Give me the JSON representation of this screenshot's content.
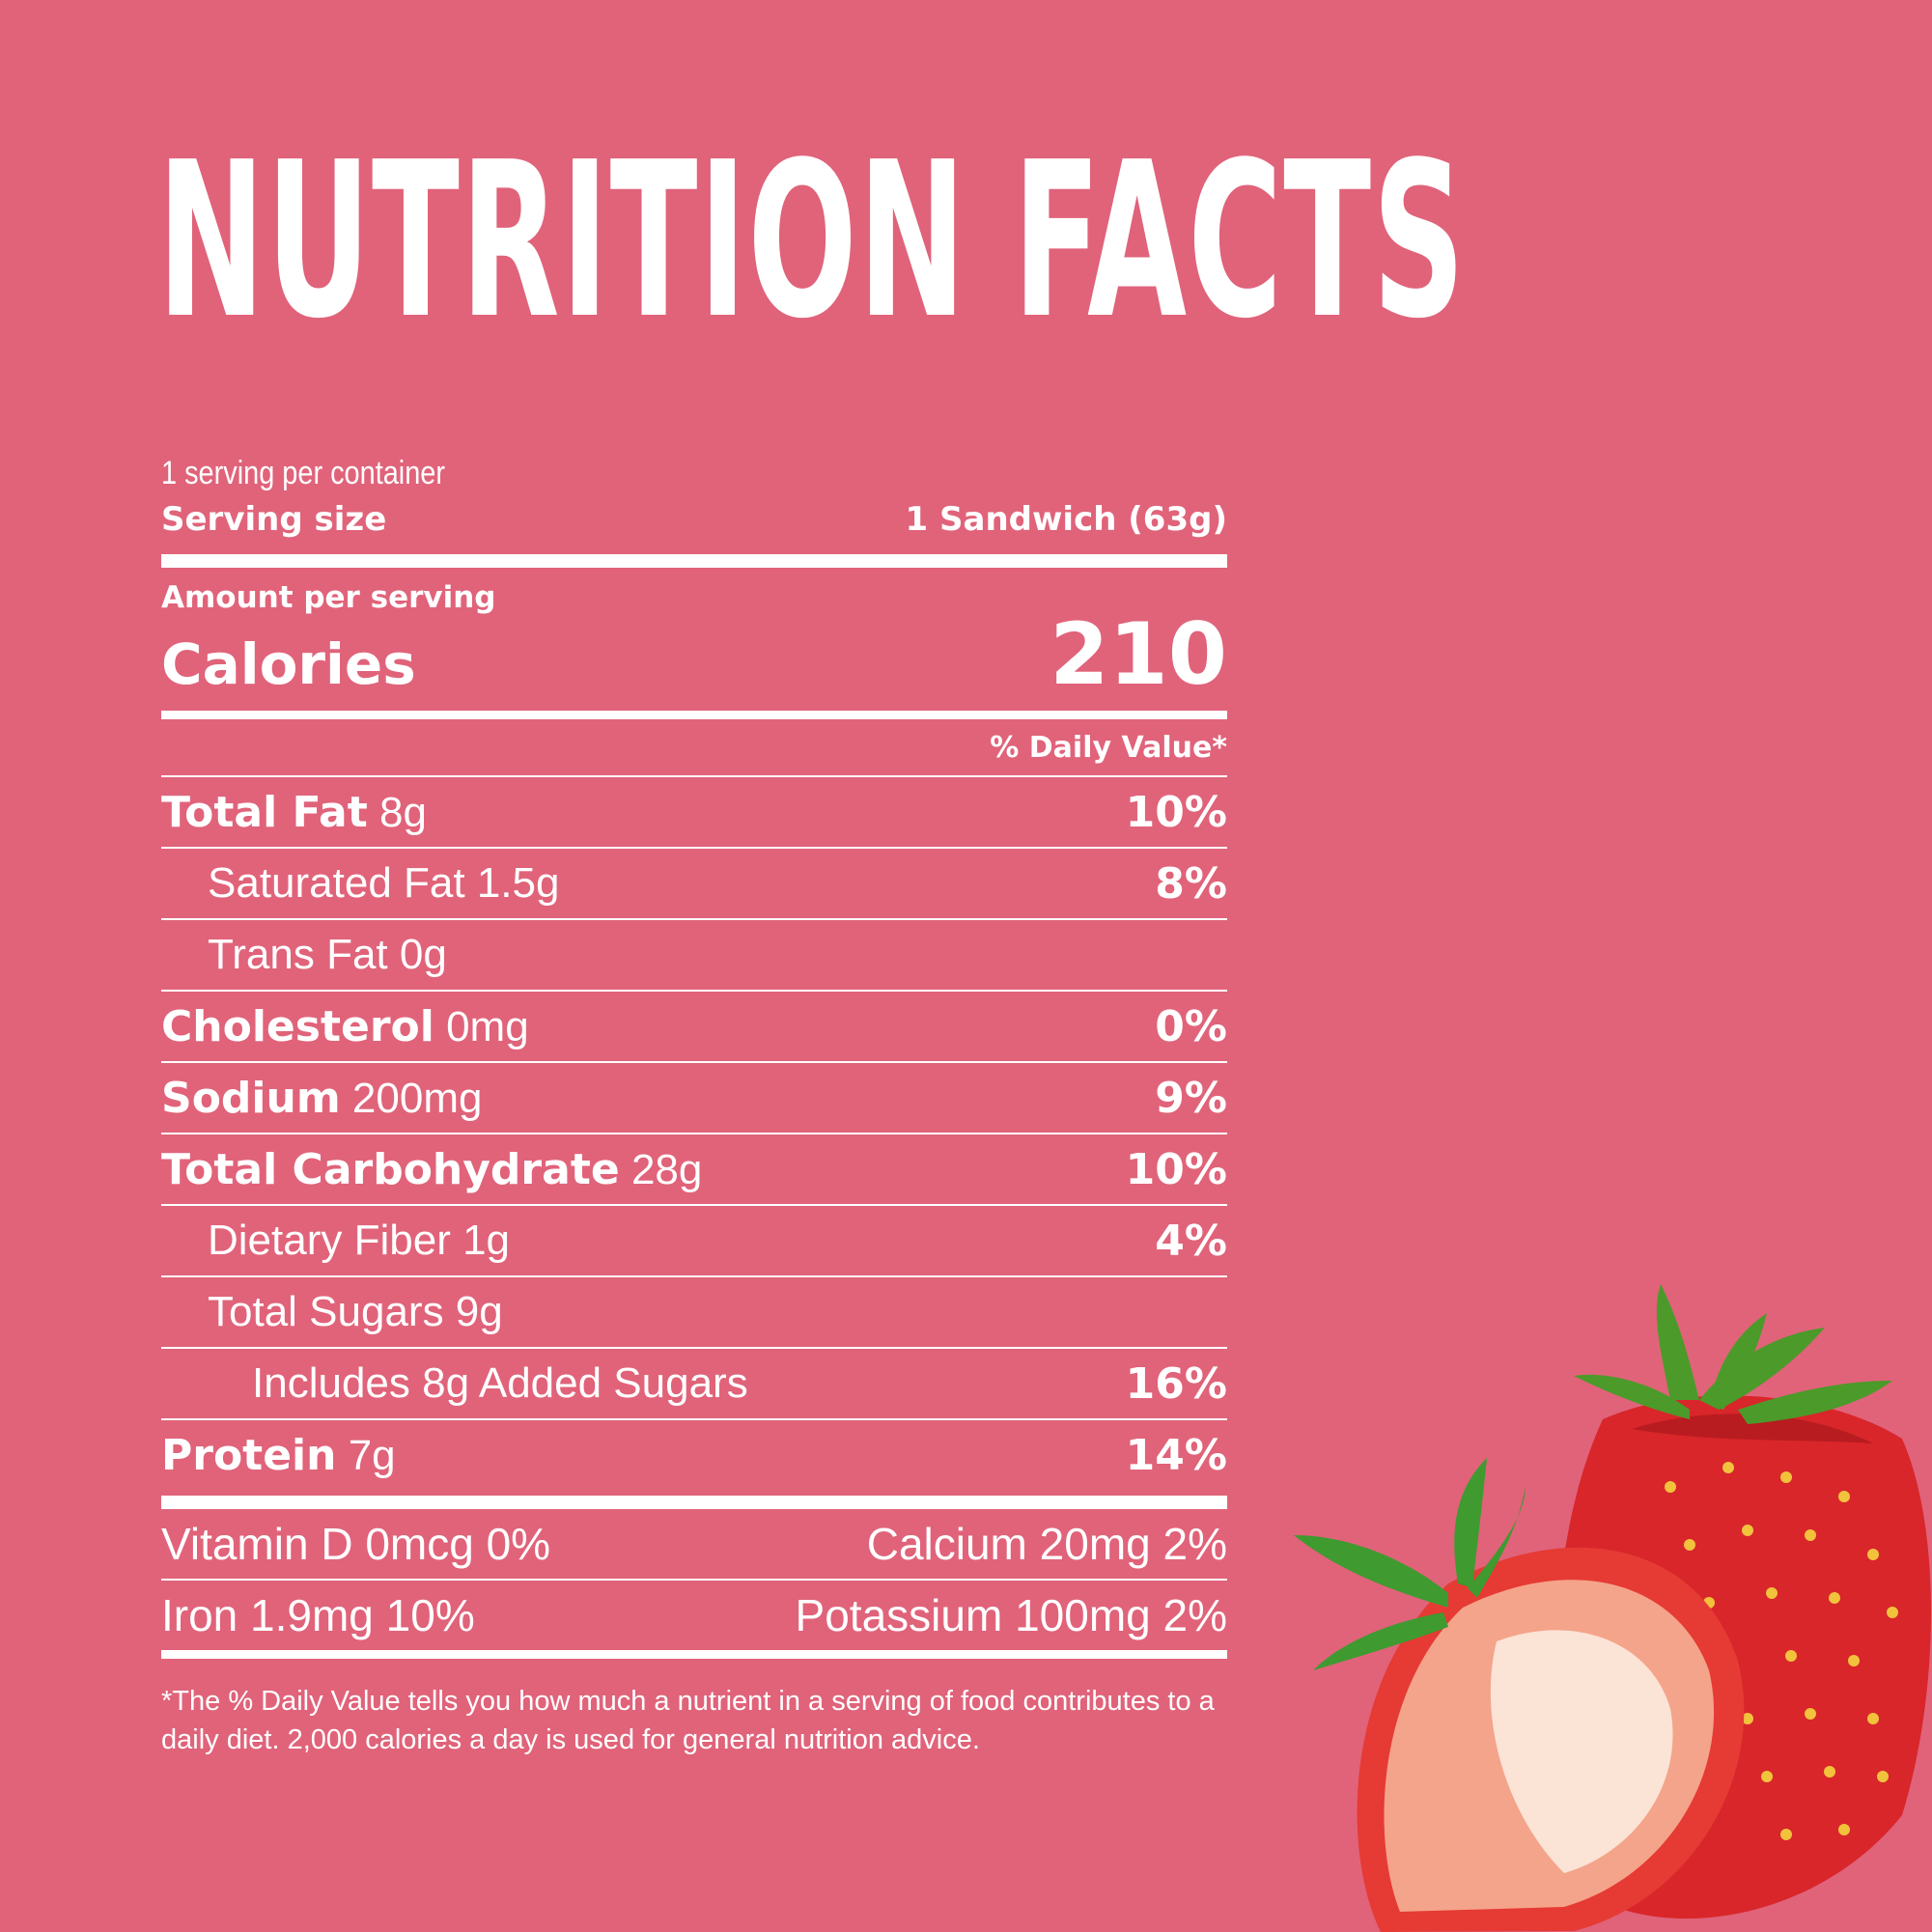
{
  "title": "NUTRITION FACTS",
  "servings_per_container": "1 serving per container",
  "serving_size_label": "Serving size",
  "serving_size_value": "1 Sandwich (63g)",
  "amount_per_serving": "Amount per serving",
  "calories_label": "Calories",
  "calories_value": "210",
  "daily_value_header": "% Daily Value*",
  "nutrients": [
    {
      "name": "Total Fat",
      "amount": "8g",
      "dv": "10%"
    },
    {
      "name": "Saturated Fat 1.5g",
      "amount": "",
      "dv": "8%"
    },
    {
      "name": "Trans Fat 0g",
      "amount": "",
      "dv": ""
    },
    {
      "name": "Cholesterol",
      "amount": "0mg",
      "dv": "0%"
    },
    {
      "name": "Sodium",
      "amount": "200mg",
      "dv": "9%"
    },
    {
      "name": "Total Carbohydrate",
      "amount": "28g",
      "dv": "10%"
    },
    {
      "name": "Dietary Fiber 1g",
      "amount": "",
      "dv": "4%"
    },
    {
      "name": "Total Sugars 9g",
      "amount": "",
      "dv": ""
    },
    {
      "name": "Includes 8g Added Sugars",
      "amount": "",
      "dv": "16%"
    },
    {
      "name": "Protein",
      "amount": "7g",
      "dv": "14%"
    }
  ],
  "vitamins": [
    {
      "left": "Vitamin D 0mcg 0%",
      "right": "Calcium 20mg 2%"
    },
    {
      "left": "Iron 1.9mg 10%",
      "right": "Potassium 100mg 2%"
    }
  ],
  "footnote": "*The % Daily Value tells you how much a nutrient in a serving of food contributes to a daily diet. 2,000 calories a day is used for general nutrition advice.",
  "colors": {
    "background": "#e0637a",
    "text": "#ffffff",
    "strawberry": "#d8262a"
  }
}
